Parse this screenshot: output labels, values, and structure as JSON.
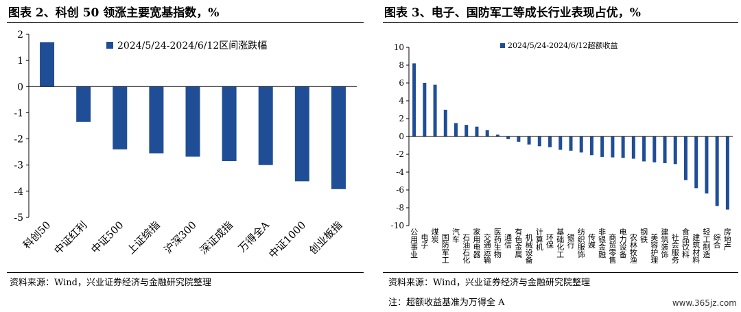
{
  "chart_data": [
    {
      "type": "bar",
      "title": "图表 2、科创 50 领涨主要宽基指数，%",
      "categories": [
        "科创50",
        "中证红利",
        "中证500",
        "上证综指",
        "沪深300",
        "深证成指",
        "万得全A",
        "中证1000",
        "创业板指"
      ],
      "series": [
        {
          "name": "2024/5/24-2024/6/12区间涨跌幅",
          "values": [
            1.7,
            -1.35,
            -2.4,
            -2.55,
            -2.68,
            -2.85,
            -3.0,
            -3.62,
            -3.92
          ],
          "color": "#1f4e96"
        }
      ],
      "ylim": [
        -5,
        2
      ],
      "yticks": [
        2,
        1,
        0,
        -1,
        -2,
        -3,
        -4,
        -5
      ],
      "legend": "top",
      "grid": false,
      "source": "资料来源：Wind，兴业证券经济与金融研究院整理"
    },
    {
      "type": "bar",
      "title": "图表 3、电子、国防军工等成长行业表现占优，%",
      "categories": [
        "公用事业",
        "电子",
        "煤炭",
        "国防军工",
        "汽车",
        "石油石化",
        "家用电器",
        "交通运输",
        "医药生物",
        "通信",
        "有色金属",
        "机械设备",
        "计算机",
        "环保",
        "基础化工",
        "银行",
        "纺织服饰",
        "传媒",
        "非银金融",
        "商贸零售",
        "电力设备",
        "农林牧渔",
        "钢铁",
        "美容护理",
        "建筑装饰",
        "社会服务",
        "食品饮料",
        "建筑材料",
        "轻工制造",
        "综合",
        "房地产"
      ],
      "series": [
        {
          "name": "2024/5/24-2024/6/12超额收益",
          "values": [
            8.2,
            6.0,
            5.8,
            3.0,
            1.5,
            1.3,
            1.1,
            0.7,
            0.2,
            -0.3,
            -0.6,
            -0.9,
            -1.1,
            -1.2,
            -1.5,
            -1.6,
            -1.8,
            -2.1,
            -2.3,
            -2.35,
            -2.4,
            -2.5,
            -2.8,
            -2.9,
            -3.0,
            -3.1,
            -4.9,
            -5.8,
            -6.4,
            -7.8,
            -8.2
          ],
          "color": "#1f4e96"
        }
      ],
      "ylim": [
        -10,
        10
      ],
      "yticks": [
        10,
        8,
        6,
        4,
        2,
        0,
        -2,
        -4,
        -6,
        -8,
        -10
      ],
      "legend": "top",
      "grid": false,
      "source": "资料来源：Wind，兴业证券经济与金融研究院整理",
      "note": "注：超额收益基准为万得全 A"
    }
  ],
  "watermark": "www.365jz.com"
}
